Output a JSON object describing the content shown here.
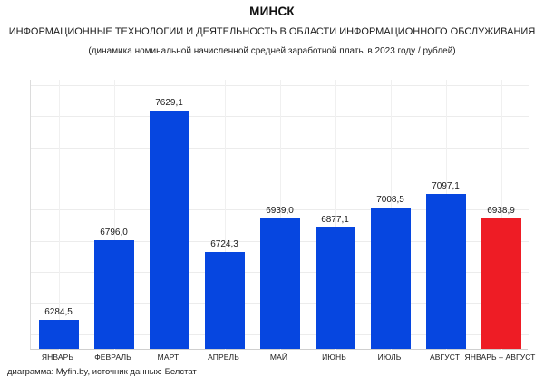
{
  "header": {
    "title": "МИНСК",
    "subtitle": "ИНФОРМАЦИОННЫЕ ТЕХНОЛОГИИ И ДЕЯТЕЛЬНОСТЬ В ОБЛАСТИ ИНФОРМАЦИОННОГО ОБСЛУЖИВАНИЯ",
    "note": "(динамика номинальной начисленной средней заработной платы в 2023 году / рублей)"
  },
  "footer": {
    "credit": "диаграмма: Myfin.by, источник данных: Белстат"
  },
  "chart_data": {
    "type": "bar",
    "title": "МИНСК",
    "subtitle": "ИНФОРМАЦИОННЫЕ ТЕХНОЛОГИИ И ДЕЯТЕЛЬНОСТЬ В ОБЛАСТИ ИНФОРМАЦИОННОГО ОБСЛУЖИВАНИЯ",
    "note": "(динамика номинальной начисленной средней заработной платы в 2023 году / рублей)",
    "categories": [
      "ЯНВАРЬ",
      "ФЕВРАЛЬ",
      "МАРТ",
      "АПРЕЛЬ",
      "МАЙ",
      "ИЮНЬ",
      "ИЮЛЬ",
      "АВГУСТ",
      "ЯНВАРЬ – АВГУСТ"
    ],
    "values": [
      6284.5,
      6796.0,
      7629.1,
      6724.3,
      6939.0,
      6877.1,
      7008.5,
      7097.1,
      6938.9
    ],
    "value_labels": [
      "6284,5",
      "6796,0",
      "7629,1",
      "6724,3",
      "6939,0",
      "6877,1",
      "7008,5",
      "7097,1",
      "6938,9"
    ],
    "highlight_index": 8,
    "colors": {
      "bar": "#0646e0",
      "highlight": "#ee1c25",
      "hgrid": "#ececec",
      "vgrid": "#f0f0f0",
      "axis": "#cfcfcf"
    },
    "xlabel": "",
    "ylabel": "",
    "ylim": [
      6100,
      7834
    ],
    "gridline_step": 200,
    "grid": true,
    "legend": "none",
    "y_axis_labels_visible": false
  }
}
